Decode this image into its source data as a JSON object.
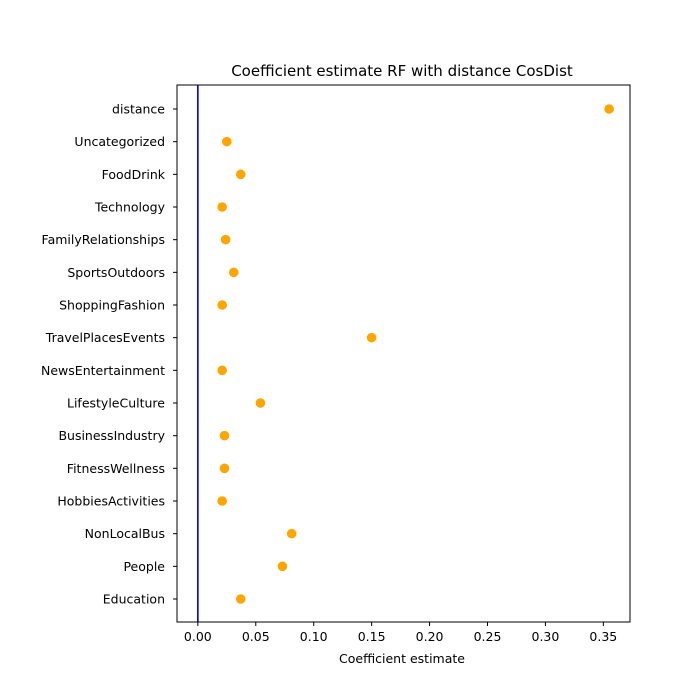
{
  "chart_data": {
    "type": "scatter",
    "title": "Coefficient estimate RF  with distance CosDist",
    "xlabel": "Coefficient estimate",
    "ylabel": "",
    "xlim": [
      -0.018,
      0.373
    ],
    "x_ticks": [
      0.0,
      0.05,
      0.1,
      0.15,
      0.2,
      0.25,
      0.3,
      0.35
    ],
    "x_tick_labels": [
      "0.00",
      "0.05",
      "0.10",
      "0.15",
      "0.20",
      "0.25",
      "0.30",
      "0.35"
    ],
    "reference_line_x": 0,
    "categories": [
      "distance",
      "Uncategorized",
      "FoodDrink",
      "Technology",
      "FamilyRelationships",
      "SportsOutdoors",
      "ShoppingFashion",
      "TravelPlacesEvents",
      "NewsEntertainment",
      "LifestyleCulture",
      "BusinessIndustry",
      "FitnessWellness",
      "HobbiesActivities",
      "NonLocalBus",
      "People",
      "Education"
    ],
    "values": [
      0.355,
      0.025,
      0.037,
      0.021,
      0.024,
      0.031,
      0.021,
      0.15,
      0.021,
      0.054,
      0.023,
      0.023,
      0.021,
      0.081,
      0.073,
      0.037
    ],
    "grid": false,
    "colors": {
      "points": "#ffa500",
      "reference_line": "#0000cc",
      "axes": "#000000"
    }
  }
}
